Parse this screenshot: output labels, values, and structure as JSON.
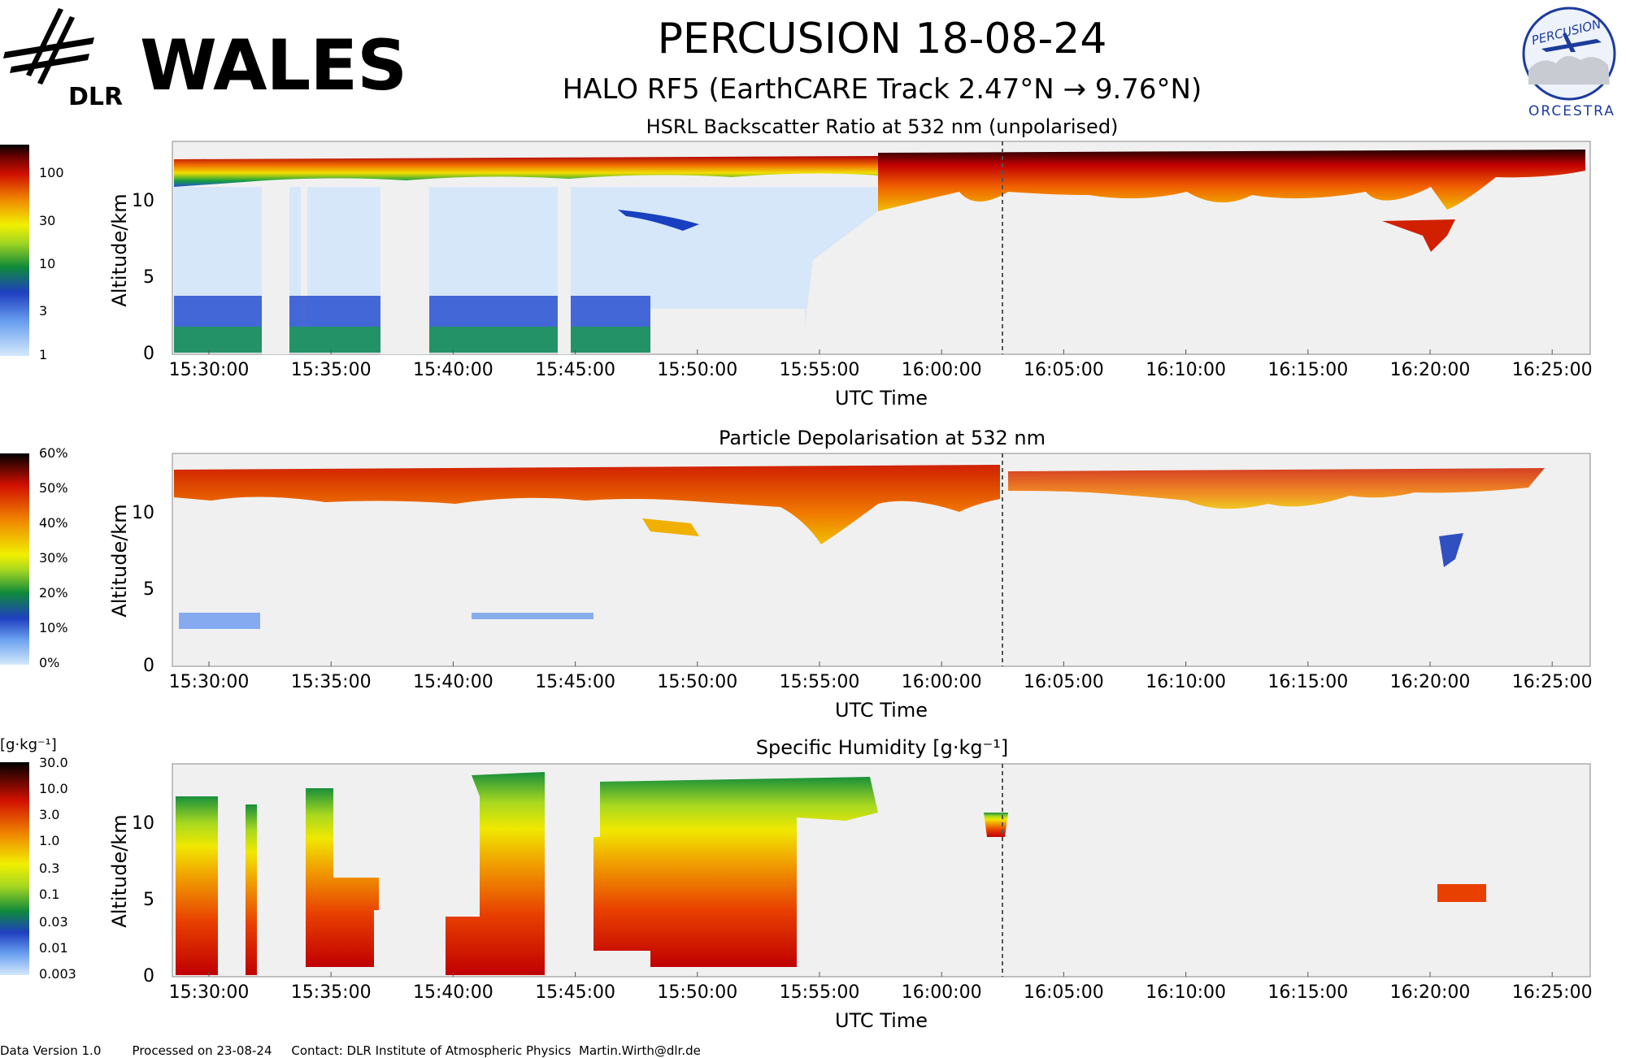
{
  "header": {
    "org_logo_text": "WALES",
    "org_sub_text": "DLR",
    "title": "PERCUSION  18-08-24",
    "subtitle": "HALO RF5 (EarthCARE Track  2.47°N → 9.76°N)",
    "campaign_logo_top": "PERCUSION",
    "campaign_logo_bottom": "ORCESTRA"
  },
  "footer": {
    "version": "Data Version 1.0",
    "processed": "Processed on 23-08-24",
    "contact": "Contact: DLR Institute of Atmospheric Physics  Martin.Wirth@dlr.de"
  },
  "chart_data": [
    {
      "type": "heatmap",
      "title": "HSRL Backscatter Ratio at 532 nm (unpolarised)",
      "xlabel": "UTC Time",
      "ylabel": "Altitude/km",
      "x_ticks": [
        "15:30:00",
        "15:35:00",
        "15:40:00",
        "15:45:00",
        "15:50:00",
        "15:55:00",
        "16:00:00",
        "16:05:00",
        "16:10:00",
        "16:15:00",
        "16:20:00",
        "16:25:00"
      ],
      "y_ticks": [
        "0",
        "5",
        "10"
      ],
      "ylim": [
        0,
        13.8
      ],
      "colorbar_ticks": [
        "1",
        "3",
        "10",
        "30",
        "100"
      ],
      "colorbar_scale": "log",
      "marker_time": "16:04:00",
      "cloud_top_km": 13.0,
      "aerosol_layer_km": [
        0,
        3.7
      ]
    },
    {
      "type": "heatmap",
      "title": "Particle Depolarisation at 532 nm",
      "xlabel": "UTC Time",
      "ylabel": "Altitude/km",
      "x_ticks": [
        "15:30:00",
        "15:35:00",
        "15:40:00",
        "15:45:00",
        "15:50:00",
        "15:55:00",
        "16:00:00",
        "16:05:00",
        "16:10:00",
        "16:15:00",
        "16:20:00",
        "16:25:00"
      ],
      "y_ticks": [
        "0",
        "5",
        "10"
      ],
      "ylim": [
        0,
        13.8
      ],
      "colorbar_ticks": [
        "0%",
        "10%",
        "20%",
        "30%",
        "40%",
        "50%",
        "60%"
      ],
      "colorbar_scale": "linear",
      "marker_time": "16:04:00"
    },
    {
      "type": "heatmap",
      "title": "Specific Humidity [g·kg⁻¹]",
      "unit_label": "[g·kg⁻¹]",
      "xlabel": "UTC Time",
      "ylabel": "Altitude/km",
      "x_ticks": [
        "15:30:00",
        "15:35:00",
        "15:40:00",
        "15:45:00",
        "15:50:00",
        "15:55:00",
        "16:00:00",
        "16:05:00",
        "16:10:00",
        "16:15:00",
        "16:20:00",
        "16:25:00"
      ],
      "y_ticks": [
        "0",
        "5",
        "10"
      ],
      "ylim": [
        0,
        13.8
      ],
      "colorbar_ticks": [
        "0.003",
        "0.01",
        "0.03",
        "0.1",
        "0.3",
        "1.0",
        "3.0",
        "10.0",
        "30.0"
      ],
      "colorbar_scale": "log",
      "marker_time": "16:04:00"
    }
  ],
  "colors": {
    "no_data": "#f0f0f0",
    "marker": "#555555",
    "ramp": [
      "#d4e8fa",
      "#3f6fde",
      "#18a23c",
      "#f0f000",
      "#f07800",
      "#d10000",
      "#000000"
    ]
  }
}
